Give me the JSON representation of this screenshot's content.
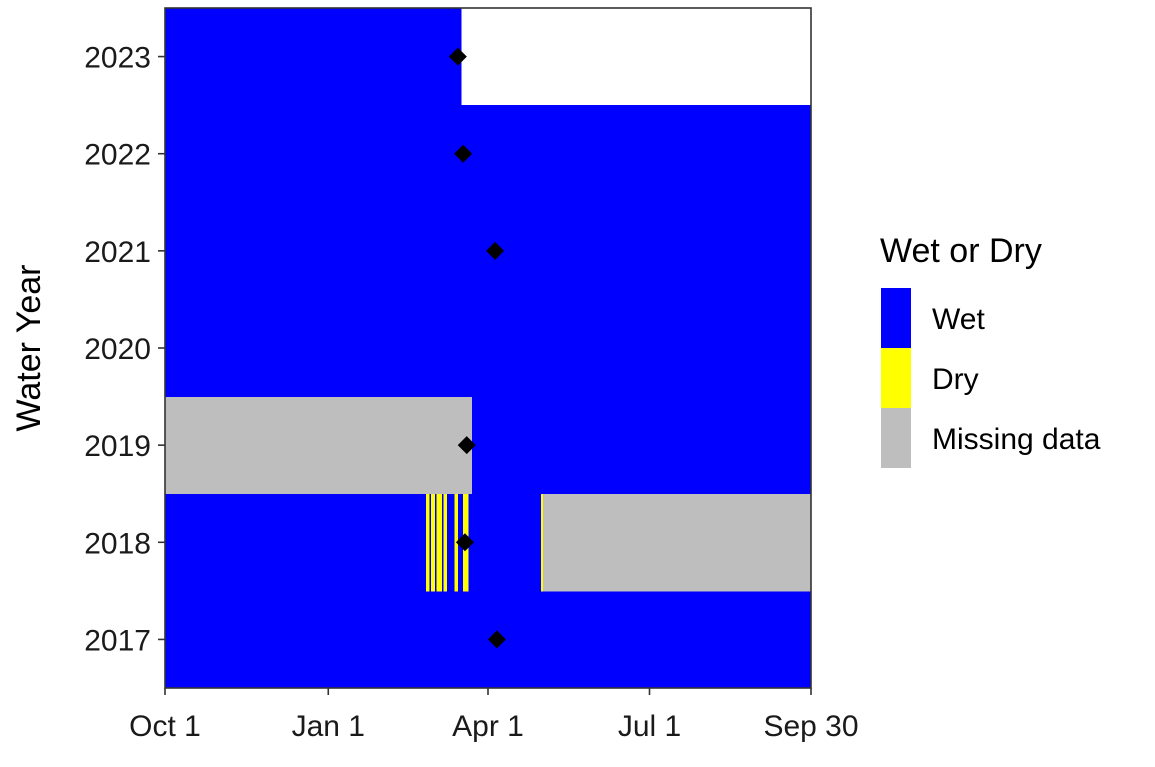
{
  "chart_data": {
    "type": "heatmap",
    "title": "",
    "xlabel": "",
    "ylabel": "Water Year",
    "x_ticks": [
      "Oct 1",
      "Jan 1",
      "Apr 1",
      "Jul 1",
      "Sep 30"
    ],
    "y_categories": [
      "2017",
      "2018",
      "2019",
      "2020",
      "2021",
      "2022",
      "2023"
    ],
    "legend": {
      "title": "Wet or Dry",
      "placement": "right",
      "items": [
        {
          "label": "Wet",
          "color": "#0000FF"
        },
        {
          "label": "Dry",
          "color": "#FFFF00"
        },
        {
          "label": "Missing data",
          "color": "#BEBEBE"
        }
      ]
    },
    "rows": [
      {
        "year": "2017",
        "segments": [
          {
            "start": "Oct 1",
            "end": "Sep 30",
            "status": "Wet"
          }
        ]
      },
      {
        "year": "2018",
        "segments": [
          {
            "start": "Oct 1",
            "end": "Feb 25",
            "status": "Wet"
          },
          {
            "start": "Feb 25",
            "end": "Feb 27",
            "status": "Dry"
          },
          {
            "start": "Feb 27",
            "end": "Feb 28",
            "status": "Wet"
          },
          {
            "start": "Feb 28",
            "end": "Mar 2",
            "status": "Dry"
          },
          {
            "start": "Mar 2",
            "end": "Mar 3",
            "status": "Wet"
          },
          {
            "start": "Mar 3",
            "end": "Mar 6",
            "status": "Dry"
          },
          {
            "start": "Mar 6",
            "end": "Mar 7",
            "status": "Wet"
          },
          {
            "start": "Mar 7",
            "end": "Mar 9",
            "status": "Dry"
          },
          {
            "start": "Mar 9",
            "end": "Mar 13",
            "status": "Wet"
          },
          {
            "start": "Mar 13",
            "end": "Mar 15",
            "status": "Dry"
          },
          {
            "start": "Mar 15",
            "end": "Mar 18",
            "status": "Wet"
          },
          {
            "start": "Mar 18",
            "end": "Mar 21",
            "status": "Dry"
          },
          {
            "start": "Mar 21",
            "end": "May 1",
            "status": "Wet"
          },
          {
            "start": "May 1",
            "end": "May 2",
            "status": "Dry"
          },
          {
            "start": "May 2",
            "end": "Sep 30",
            "status": "Missing data"
          }
        ]
      },
      {
        "year": "2019",
        "segments": [
          {
            "start": "Oct 1",
            "end": "Mar 23",
            "status": "Missing data"
          },
          {
            "start": "Mar 23",
            "end": "Sep 30",
            "status": "Wet"
          }
        ]
      },
      {
        "year": "2020",
        "segments": [
          {
            "start": "Oct 1",
            "end": "Sep 30",
            "status": "Wet"
          }
        ]
      },
      {
        "year": "2021",
        "segments": [
          {
            "start": "Oct 1",
            "end": "Sep 30",
            "status": "Wet"
          }
        ]
      },
      {
        "year": "2022",
        "segments": [
          {
            "start": "Oct 1",
            "end": "Sep 30",
            "status": "Wet"
          }
        ]
      },
      {
        "year": "2023",
        "segments": [
          {
            "start": "Oct 1",
            "end": "Mar 17",
            "status": "Wet"
          }
        ]
      }
    ],
    "markers": [
      {
        "year": "2017",
        "date": "Apr 6"
      },
      {
        "year": "2018",
        "date": "Mar 19"
      },
      {
        "year": "2019",
        "date": "Mar 20"
      },
      {
        "year": "2020",
        "date": ""
      },
      {
        "year": "2021",
        "date": "Apr 5"
      },
      {
        "year": "2022",
        "date": "Mar 18"
      },
      {
        "year": "2023",
        "date": "Mar 15"
      }
    ],
    "grid": false
  }
}
